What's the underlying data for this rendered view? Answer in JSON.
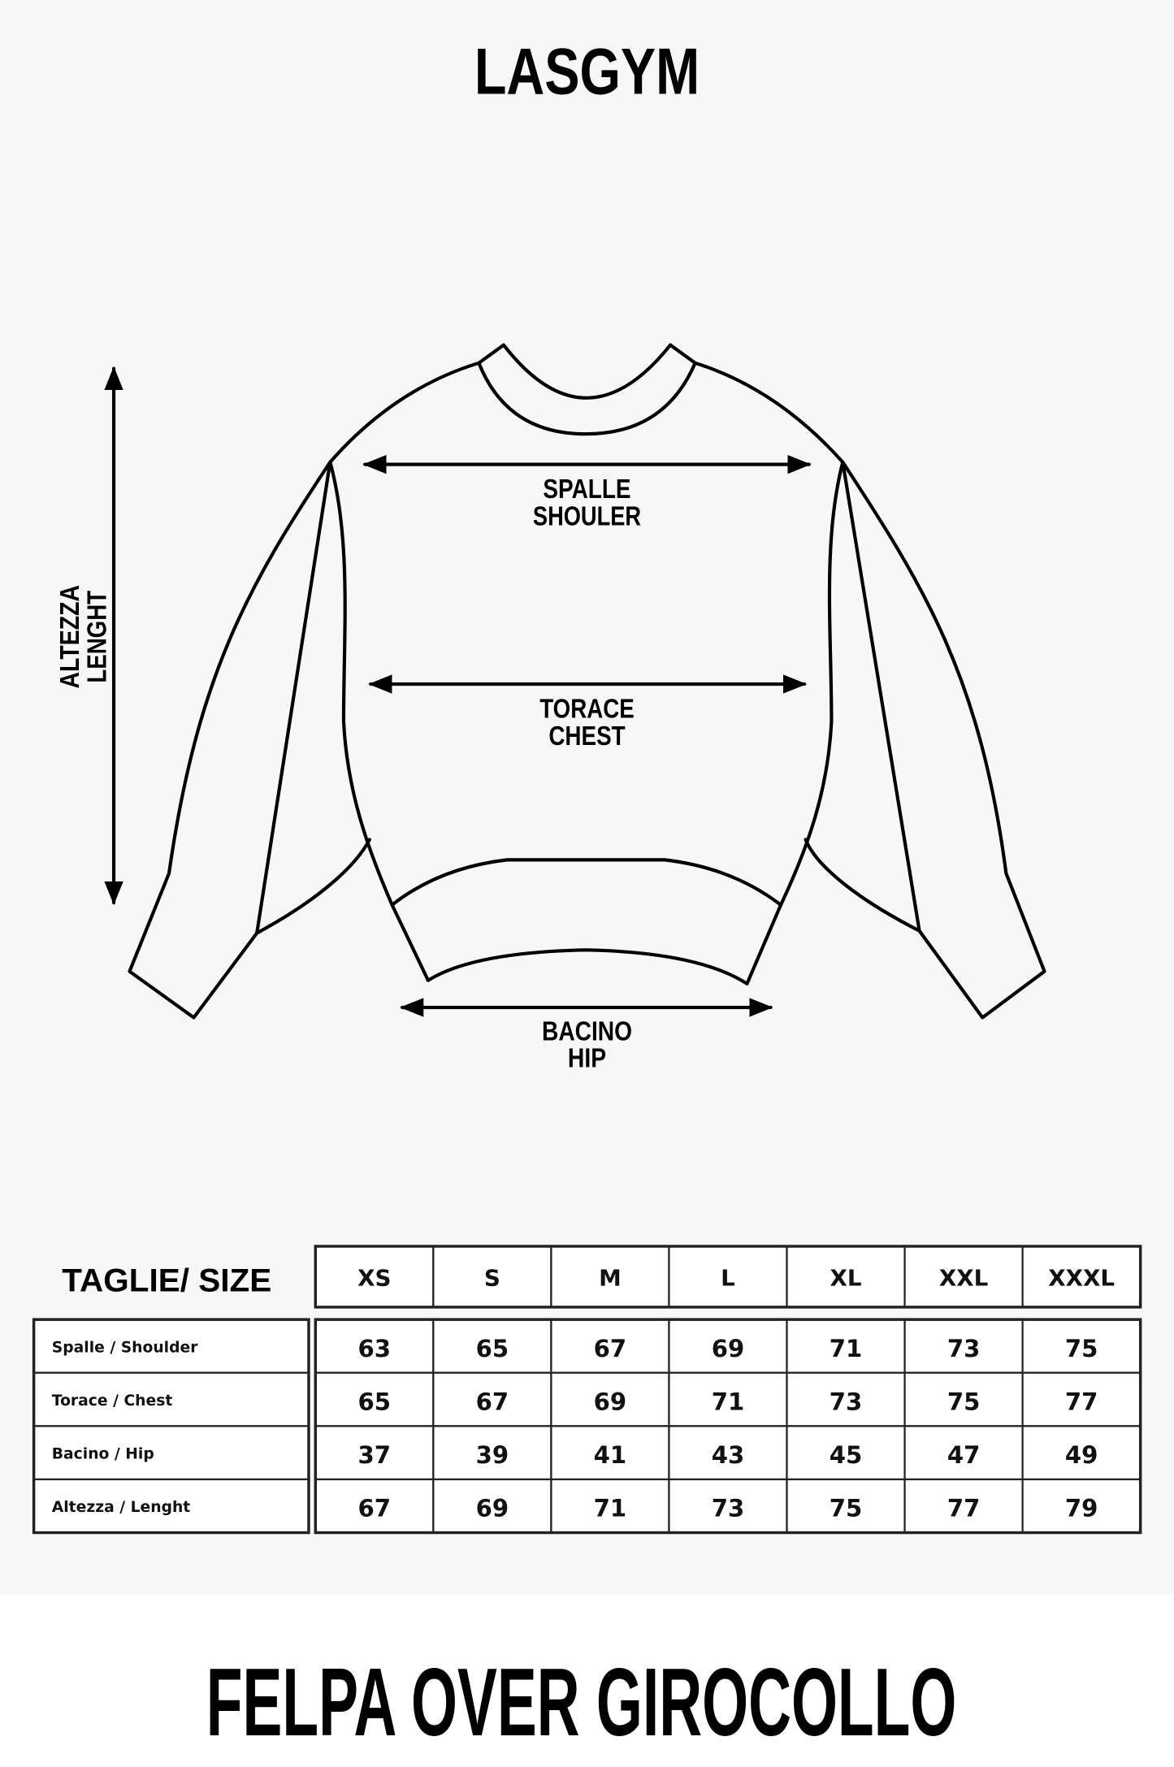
{
  "brand": "LASGYM",
  "product_title": "FELPA OVER GIROCOLLO",
  "diagram": {
    "shoulder": [
      "SPALLE",
      "SHOULER"
    ],
    "chest": [
      "TORACE",
      "CHEST"
    ],
    "hip": [
      "BACINO",
      "HIP"
    ],
    "length": [
      "ALTEZZA",
      "LENGHT"
    ]
  },
  "table": {
    "size_label": "TAGLIE/ SIZE",
    "sizes": [
      "XS",
      "S",
      "M",
      "L",
      "XL",
      "XXL",
      "XXXL"
    ],
    "rows": [
      {
        "label": "Spalle / Shoulder",
        "values": [
          "63",
          "65",
          "67",
          "69",
          "71",
          "73",
          "75"
        ]
      },
      {
        "label": "Torace / Chest",
        "values": [
          "65",
          "67",
          "69",
          "71",
          "73",
          "75",
          "77"
        ]
      },
      {
        "label": "Bacino / Hip",
        "values": [
          "37",
          "39",
          "41",
          "43",
          "45",
          "47",
          "49"
        ]
      },
      {
        "label": "Altezza / Lenght",
        "values": [
          "67",
          "69",
          "71",
          "73",
          "75",
          "77",
          "79"
        ]
      }
    ]
  },
  "colors": {
    "background": "#f7f7f7",
    "footer": "#ffffff",
    "ink": "#000000"
  }
}
